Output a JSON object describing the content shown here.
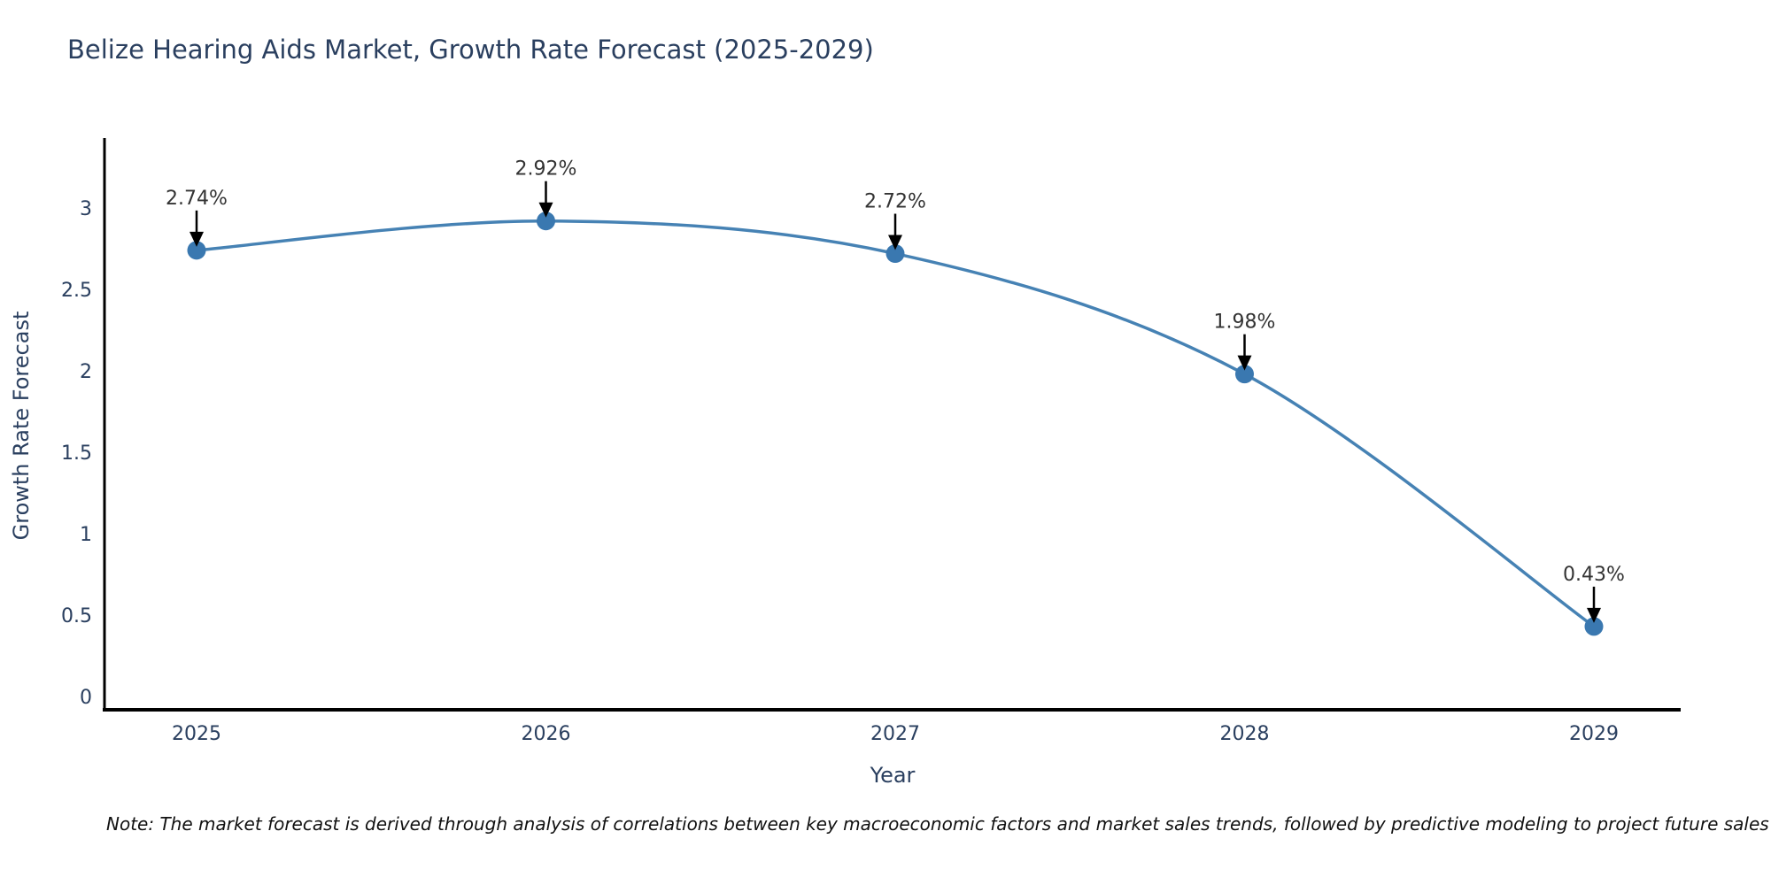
{
  "title": "Belize Hearing Aids Market, Growth Rate Forecast (2025-2029)",
  "note": "Note: The market forecast is derived through analysis of correlations between key macroeconomic factors and market sales trends, followed by predictive modeling to project future sales",
  "chart_data": {
    "type": "line",
    "title": "Belize Hearing Aids Market, Growth Rate Forecast (2025-2029)",
    "categories": [
      "2025",
      "2026",
      "2027",
      "2028",
      "2029"
    ],
    "values": [
      2.74,
      2.92,
      2.72,
      1.98,
      0.43
    ],
    "point_labels": [
      "2.74%",
      "2.92%",
      "2.72%",
      "1.98%",
      "0.43%"
    ],
    "xlabel": "Year",
    "ylabel": "Growth Rate Forecast",
    "yticks": [
      0,
      0.5,
      1,
      1.5,
      2,
      2.5,
      3
    ],
    "ytick_labels": [
      "0",
      "0.5",
      "1",
      "1.5",
      "2",
      "2.5",
      "3"
    ],
    "ylim": [
      -0.08,
      3.41
    ],
    "grid": false,
    "legend_position": "none",
    "line_shape": "spline",
    "line_color": "#4682b4",
    "marker_color": "#3a78b0",
    "arrow_color": "#000000",
    "axis_color": "#000000",
    "text_color": "#2a3f5f",
    "annotation_text_color": "#333333",
    "background_color": "#ffffff"
  }
}
